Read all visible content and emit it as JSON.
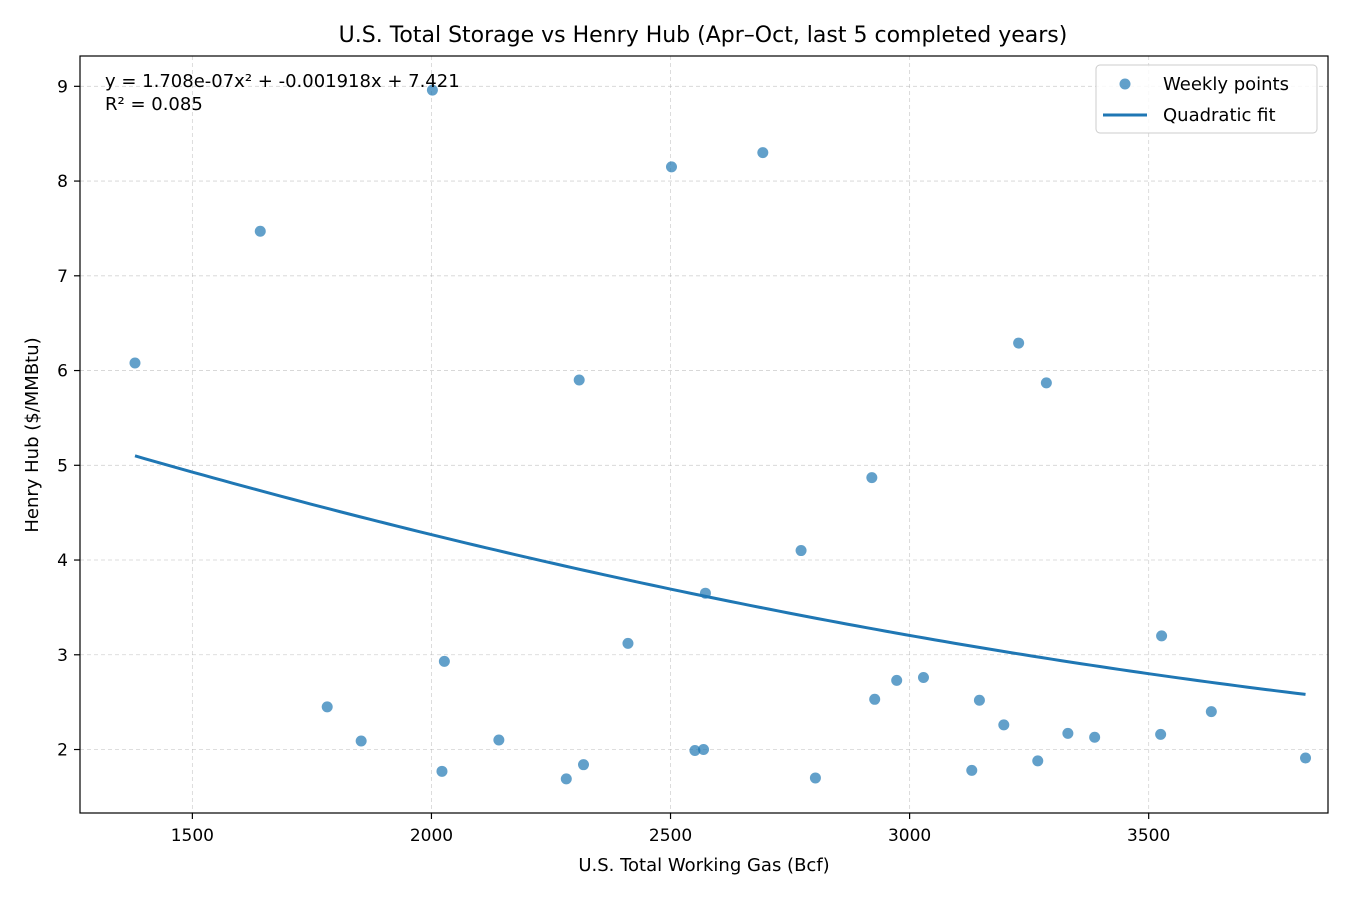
{
  "chart_data": {
    "type": "scatter",
    "title": "U.S. Total Storage vs Henry Hub (Apr–Oct, last 5 completed years)",
    "xlabel": "U.S. Total Working Gas (Bcf)",
    "ylabel": "Henry Hub ($/MMBtu)",
    "xlim": [
      1265,
      3875
    ],
    "ylim": [
      1.33,
      9.32
    ],
    "xticks": [
      1500,
      2000,
      2500,
      3000,
      3500
    ],
    "yticks": [
      2,
      3,
      4,
      5,
      6,
      7,
      8,
      9
    ],
    "grid": true,
    "legend_position": "top-right",
    "annotation": {
      "equation": "y = 1.708e-07x² + -0.001918x + 7.421",
      "r2": "R² = 0.085"
    },
    "colors": {
      "series": "#1f77b4"
    },
    "series": [
      {
        "name": "Weekly points",
        "kind": "scatter",
        "x": [
          1380,
          1642,
          1782,
          1853,
          2002,
          2022,
          2027,
          2141,
          2282,
          2309,
          2318,
          2411,
          2502,
          2551,
          2569,
          2573,
          2693,
          2773,
          2803,
          2921,
          2927,
          2973,
          3029,
          3130,
          3146,
          3197,
          3228,
          3268,
          3286,
          3331,
          3387,
          3525,
          3527,
          3631,
          3828
        ],
        "y": [
          6.08,
          7.47,
          2.45,
          2.09,
          8.96,
          1.77,
          2.93,
          2.1,
          1.69,
          5.9,
          1.84,
          3.12,
          8.15,
          1.99,
          2.0,
          3.65,
          8.3,
          4.1,
          1.7,
          4.87,
          2.53,
          2.73,
          2.76,
          1.78,
          2.52,
          2.26,
          6.29,
          1.88,
          5.87,
          2.17,
          2.13,
          2.16,
          3.2,
          2.4,
          1.91
        ]
      },
      {
        "name": "Quadratic fit",
        "kind": "line",
        "coefficients": [
          1.708e-07,
          -0.001918,
          7.421
        ],
        "x_range": [
          1380,
          3828
        ]
      }
    ]
  }
}
